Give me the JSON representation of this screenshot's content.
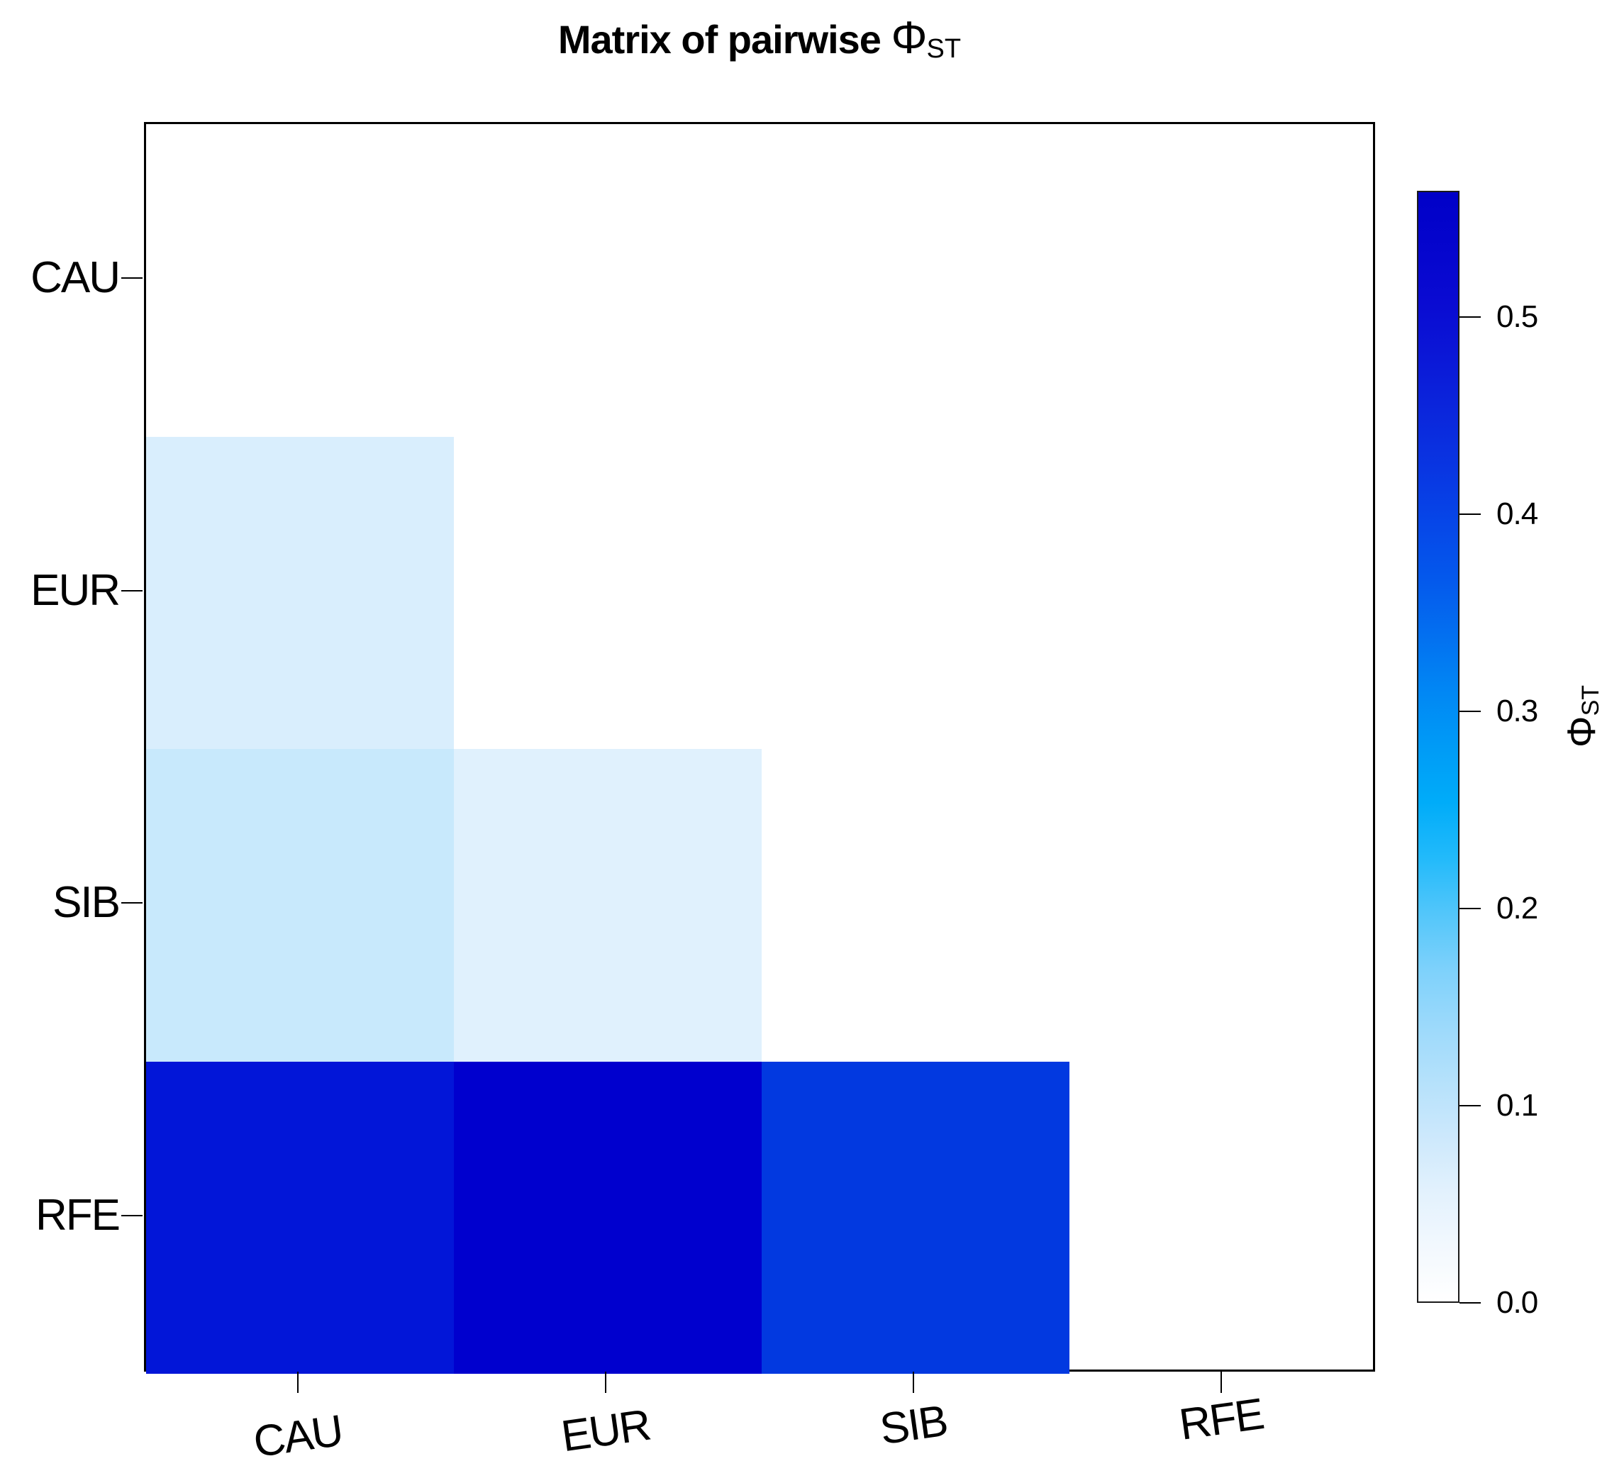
{
  "title": {
    "text": "Matrix of pairwise ",
    "phi": "Φ",
    "phi_sub": "ST"
  },
  "chart_data": {
    "type": "heatmap",
    "title": "Matrix of pairwise ΦST",
    "categories": [
      "CAU",
      "EUR",
      "SIB",
      "RFE"
    ],
    "x_axis_labels": [
      "CAU",
      "EUR",
      "SIB",
      "RFE"
    ],
    "y_axis_labels": [
      "CAU",
      "EUR",
      "SIB",
      "RFE"
    ],
    "layout": "lower-triangular pairwise matrix; diagonal and upper triangle blank (white)",
    "cells": [
      {
        "row": "EUR",
        "col": "CAU",
        "value": 0.07,
        "color": "#D9EEFD"
      },
      {
        "row": "SIB",
        "col": "CAU",
        "value": 0.09,
        "color": "#C8E9FC"
      },
      {
        "row": "SIB",
        "col": "EUR",
        "value": 0.05,
        "color": "#E0F1FD"
      },
      {
        "row": "RFE",
        "col": "CAU",
        "value": 0.51,
        "color": "#0216D8"
      },
      {
        "row": "RFE",
        "col": "EUR",
        "value": 0.55,
        "color": "#0000CE"
      },
      {
        "row": "RFE",
        "col": "SIB",
        "value": 0.46,
        "color": "#0239E0"
      }
    ],
    "colorbar": {
      "label_phi": "Φ",
      "label_sub": "ST",
      "min": 0.0,
      "max": 0.564,
      "ticks": [
        {
          "label": "0.0",
          "value": 0.0
        },
        {
          "label": "0.1",
          "value": 0.1
        },
        {
          "label": "0.2",
          "value": 0.2
        },
        {
          "label": "0.3",
          "value": 0.3
        },
        {
          "label": "0.4",
          "value": 0.4
        },
        {
          "label": "0.5",
          "value": 0.5
        }
      ],
      "gradient_top_to_bottom": [
        "#0000C8",
        "#0505CD",
        "#0A0BD2",
        "#0B18D7",
        "#0B27DC",
        "#0936E2",
        "#0647E8",
        "#0459EC",
        "#0370F0",
        "#0187F4",
        "#009BF6",
        "#00ACF9",
        "#22BAFA",
        "#52C6FA",
        "#7DD1FB",
        "#9BD9FB",
        "#B4E1FB",
        "#CCE8FC",
        "#E2F1FD",
        "#F2F8FE",
        "#FFFFFF"
      ]
    }
  }
}
